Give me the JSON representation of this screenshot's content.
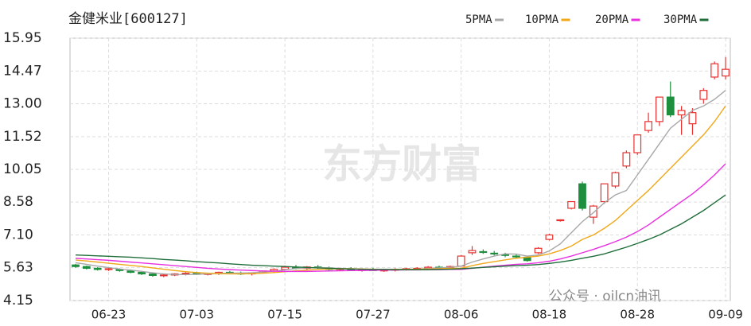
{
  "chart_data": {
    "type": "candlestick",
    "title": "金健米业[600127]",
    "watermark": "东方财富",
    "credit": "公众号 · oilcn油讯",
    "categories": [
      null,
      null,
      null,
      "06-23",
      null,
      null,
      null,
      null,
      null,
      null,
      null,
      "07-03",
      null,
      null,
      null,
      null,
      null,
      null,
      null,
      "07-15",
      null,
      null,
      null,
      null,
      null,
      null,
      null,
      "07-27",
      null,
      null,
      null,
      null,
      null,
      null,
      null,
      "08-06",
      null,
      null,
      null,
      null,
      null,
      null,
      null,
      "08-18",
      null,
      null,
      null,
      null,
      null,
      null,
      null,
      "08-28",
      null,
      null,
      null,
      null,
      null,
      null,
      null,
      "09-09"
    ],
    "open": [
      5.75,
      5.68,
      5.6,
      5.55,
      5.55,
      5.48,
      5.42,
      5.35,
      5.28,
      5.3,
      5.35,
      5.38,
      5.33,
      5.36,
      5.42,
      5.38,
      5.35,
      5.4,
      5.48,
      5.55,
      5.65,
      5.6,
      5.66,
      5.62,
      5.55,
      5.58,
      5.52,
      5.55,
      5.5,
      5.52,
      5.55,
      5.58,
      5.6,
      5.65,
      5.62,
      5.7,
      6.3,
      6.35,
      6.28,
      6.22,
      6.15,
      6.1,
      6.3,
      6.9,
      7.75,
      8.3,
      9.4,
      7.9,
      8.6,
      9.3,
      10.2,
      10.8,
      11.8,
      12.2,
      13.3,
      12.5,
      12.1,
      13.2,
      14.2,
      14.25
    ],
    "high": [
      5.8,
      5.72,
      5.65,
      5.62,
      5.6,
      5.55,
      5.48,
      5.4,
      5.35,
      5.38,
      5.42,
      5.45,
      5.4,
      5.45,
      5.48,
      5.45,
      5.42,
      5.5,
      5.6,
      5.72,
      5.75,
      5.7,
      5.75,
      5.68,
      5.62,
      5.65,
      5.6,
      5.62,
      5.58,
      5.6,
      5.62,
      5.65,
      5.7,
      5.72,
      5.72,
      6.2,
      6.6,
      6.45,
      6.38,
      6.3,
      6.25,
      6.15,
      6.55,
      7.15,
      7.8,
      8.6,
      9.5,
      8.45,
      9.4,
      9.95,
      10.9,
      11.6,
      12.6,
      13.3,
      14.0,
      12.9,
      12.8,
      13.7,
      14.9,
      15.1
    ],
    "low": [
      5.62,
      5.55,
      5.5,
      5.48,
      5.45,
      5.38,
      5.3,
      5.22,
      5.2,
      5.25,
      5.28,
      5.3,
      5.28,
      5.3,
      5.35,
      5.3,
      5.28,
      5.36,
      5.42,
      5.5,
      5.55,
      5.52,
      5.58,
      5.5,
      5.48,
      5.5,
      5.45,
      5.48,
      5.44,
      5.46,
      5.5,
      5.52,
      5.55,
      5.58,
      5.58,
      5.68,
      6.2,
      6.25,
      6.18,
      6.1,
      6.05,
      5.9,
      6.25,
      6.85,
      7.7,
      8.25,
      8.2,
      7.6,
      8.5,
      9.2,
      10.1,
      10.7,
      11.7,
      12.0,
      12.4,
      11.6,
      11.6,
      13.0,
      14.1,
      14.1
    ],
    "close": [
      5.68,
      5.6,
      5.55,
      5.58,
      5.5,
      5.42,
      5.35,
      5.28,
      5.3,
      5.35,
      5.38,
      5.33,
      5.36,
      5.42,
      5.38,
      5.35,
      5.4,
      5.48,
      5.55,
      5.65,
      5.6,
      5.66,
      5.62,
      5.55,
      5.58,
      5.52,
      5.55,
      5.5,
      5.52,
      5.55,
      5.58,
      5.6,
      5.65,
      5.62,
      5.68,
      6.15,
      6.4,
      6.32,
      6.25,
      6.18,
      6.12,
      5.95,
      6.5,
      7.1,
      7.78,
      8.6,
      8.3,
      8.4,
      9.4,
      9.9,
      10.8,
      11.6,
      12.2,
      13.3,
      12.5,
      12.7,
      12.6,
      13.6,
      14.8,
      14.55
    ],
    "up_color": "#e8312f",
    "down_color": "#1d8f3e",
    "series": [
      {
        "name": "5PMA",
        "color": "#a8a8a8",
        "values": [
          5.85,
          5.78,
          5.7,
          5.63,
          5.57,
          5.52,
          5.46,
          5.4,
          5.35,
          5.32,
          5.32,
          5.33,
          5.35,
          5.37,
          5.38,
          5.39,
          5.4,
          5.43,
          5.47,
          5.53,
          5.59,
          5.62,
          5.63,
          5.62,
          5.6,
          5.58,
          5.56,
          5.55,
          5.53,
          5.53,
          5.54,
          5.56,
          5.59,
          5.62,
          5.65,
          5.7,
          5.88,
          6.02,
          6.15,
          6.25,
          6.24,
          6.15,
          6.2,
          6.38,
          6.7,
          7.2,
          7.7,
          8.1,
          8.55,
          8.9,
          9.1,
          9.8,
          10.5,
          11.2,
          11.9,
          12.3,
          12.7,
          12.9,
          13.2,
          13.6
        ]
      },
      {
        "name": "10PMA",
        "color": "#f0a818",
        "values": [
          5.97,
          5.93,
          5.88,
          5.83,
          5.78,
          5.73,
          5.68,
          5.62,
          5.56,
          5.5,
          5.45,
          5.41,
          5.38,
          5.36,
          5.35,
          5.35,
          5.36,
          5.38,
          5.41,
          5.45,
          5.49,
          5.52,
          5.55,
          5.57,
          5.58,
          5.58,
          5.57,
          5.56,
          5.55,
          5.55,
          5.55,
          5.56,
          5.57,
          5.58,
          5.6,
          5.6,
          5.72,
          5.82,
          5.9,
          5.98,
          6.05,
          6.1,
          6.15,
          6.25,
          6.4,
          6.6,
          6.9,
          7.1,
          7.4,
          7.75,
          8.2,
          8.65,
          9.1,
          9.6,
          10.1,
          10.6,
          11.1,
          11.6,
          12.2,
          12.9
        ]
      },
      {
        "name": "20PMA",
        "color": "#e830e0",
        "values": [
          6.05,
          6.02,
          5.99,
          5.96,
          5.92,
          5.88,
          5.84,
          5.8,
          5.76,
          5.72,
          5.68,
          5.64,
          5.6,
          5.57,
          5.54,
          5.52,
          5.5,
          5.48,
          5.47,
          5.46,
          5.46,
          5.46,
          5.47,
          5.48,
          5.49,
          5.5,
          5.5,
          5.51,
          5.52,
          5.52,
          5.53,
          5.53,
          5.54,
          5.54,
          5.55,
          5.55,
          5.6,
          5.65,
          5.7,
          5.74,
          5.78,
          5.8,
          5.85,
          5.92,
          6.02,
          6.15,
          6.3,
          6.45,
          6.62,
          6.8,
          7.0,
          7.25,
          7.55,
          7.9,
          8.25,
          8.6,
          8.95,
          9.35,
          9.8,
          10.3
        ]
      },
      {
        "name": "30PMA",
        "color": "#1f6e3a",
        "values": [
          6.2,
          6.18,
          6.16,
          6.14,
          6.12,
          6.1,
          6.07,
          6.04,
          6.0,
          5.97,
          5.94,
          5.9,
          5.87,
          5.84,
          5.8,
          5.77,
          5.74,
          5.72,
          5.7,
          5.68,
          5.66,
          5.64,
          5.62,
          5.6,
          5.58,
          5.57,
          5.56,
          5.55,
          5.55,
          5.54,
          5.54,
          5.54,
          5.54,
          5.55,
          5.56,
          5.58,
          5.61,
          5.64,
          5.67,
          5.7,
          5.72,
          5.74,
          5.77,
          5.82,
          5.88,
          5.96,
          6.05,
          6.14,
          6.25,
          6.4,
          6.55,
          6.72,
          6.9,
          7.1,
          7.35,
          7.6,
          7.9,
          8.2,
          8.55,
          8.9
        ]
      }
    ],
    "ylim": [
      4.15,
      15.95
    ],
    "yticks": [
      4.15,
      5.63,
      {
        "value": 7.1,
        "label": "7.10"
      },
      8.58,
      10.05,
      11.52,
      {
        "value": 13,
        "label": "13.00"
      },
      14.47,
      15.95
    ],
    "grid": true
  }
}
